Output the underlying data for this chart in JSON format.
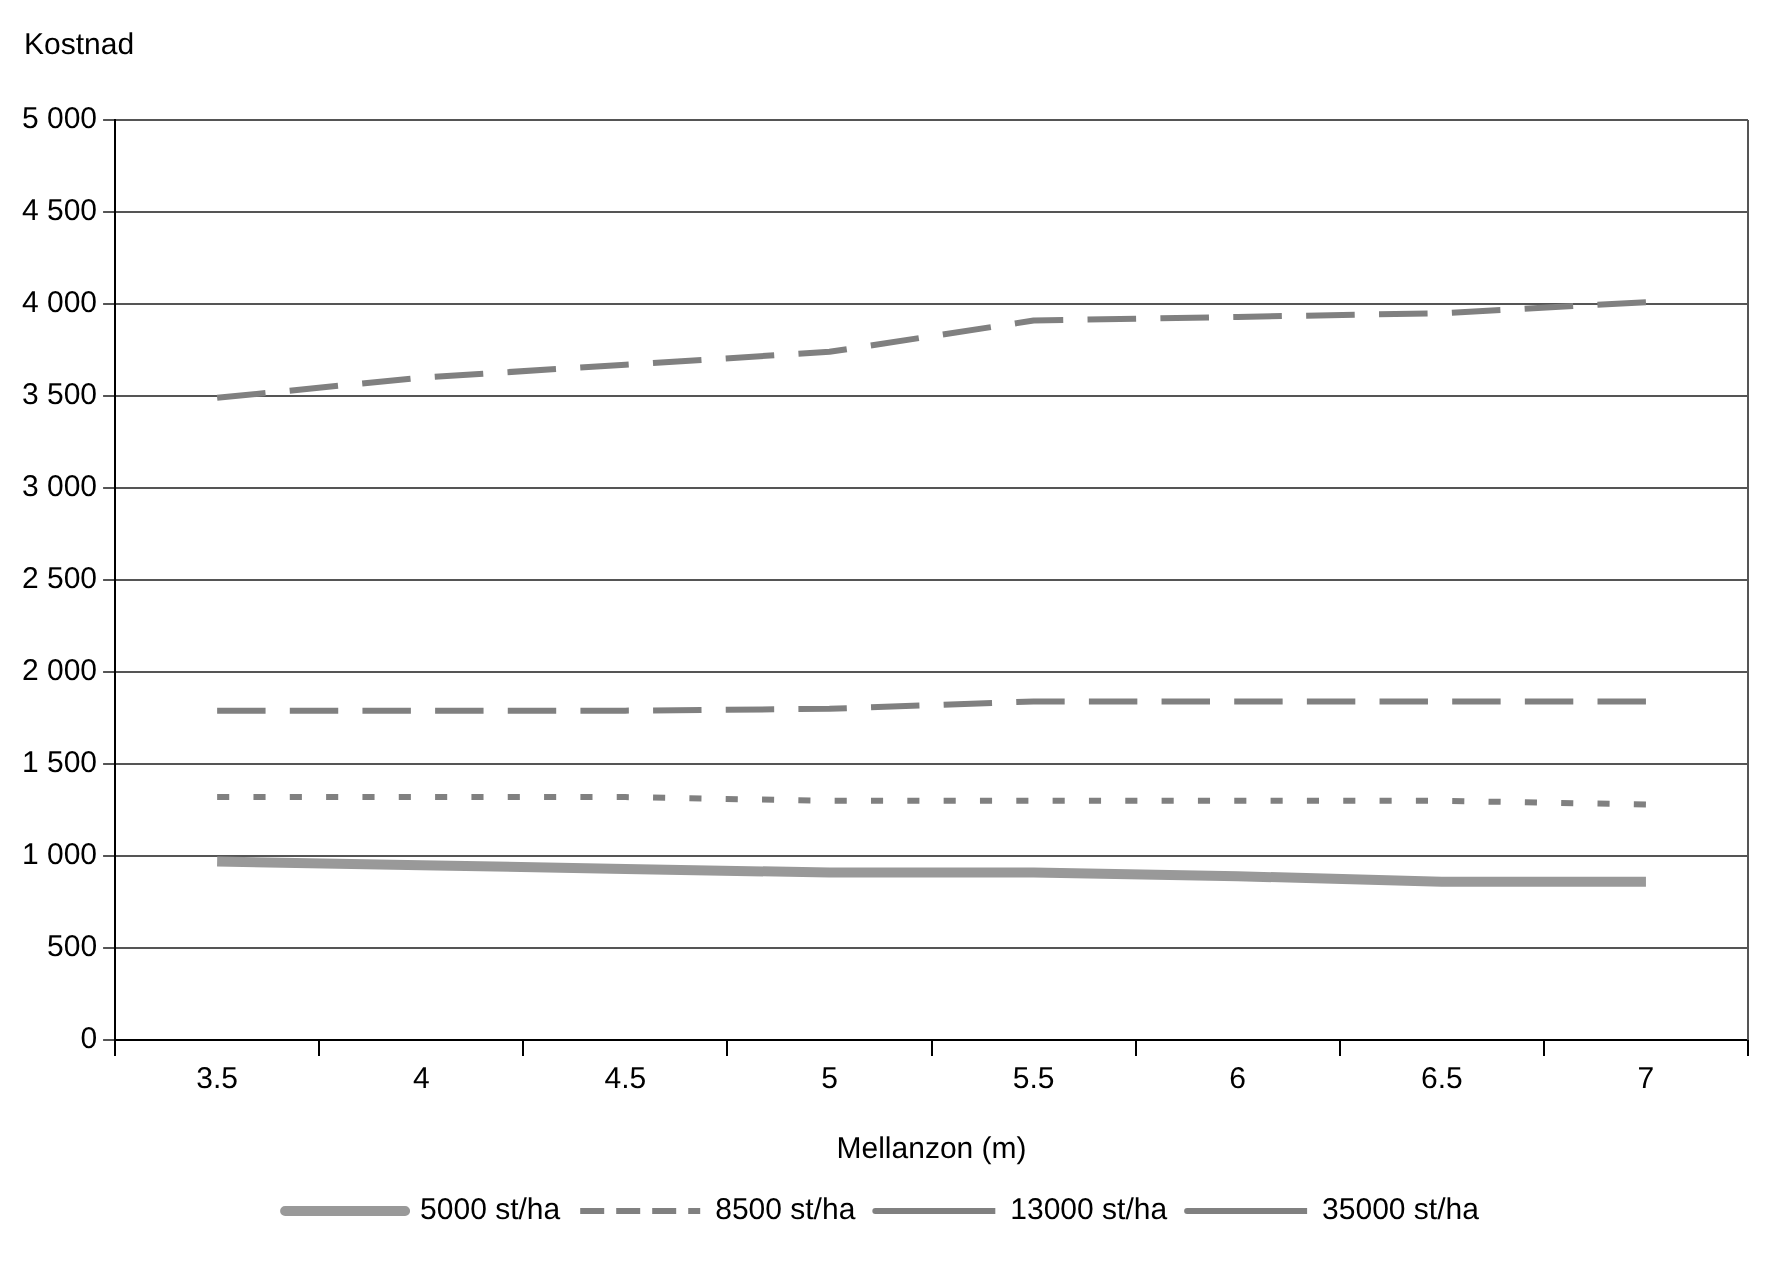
{
  "chart_data": {
    "type": "line",
    "ylabel": "Kostnad",
    "xlabel": "Mellanzon (m)",
    "categories": [
      "3.5",
      "4",
      "4.5",
      "5",
      "5.5",
      "6",
      "6.5",
      "7"
    ],
    "series": [
      {
        "name": "5000 st/ha",
        "color": "#999999",
        "line_style": "solid",
        "values": [
          970,
          950,
          930,
          910,
          910,
          890,
          860,
          860
        ]
      },
      {
        "name": "8500 st/ha",
        "color": "#808080",
        "line_style": "dotted",
        "values": [
          1320,
          1320,
          1320,
          1300,
          1300,
          1300,
          1300,
          1280
        ]
      },
      {
        "name": "13000 st/ha",
        "color": "#808080",
        "line_style": "dashed",
        "values": [
          1790,
          1790,
          1790,
          1800,
          1840,
          1840,
          1840,
          1840
        ]
      },
      {
        "name": "35000 st/ha",
        "color": "#808080",
        "line_style": "dashed",
        "values": [
          3490,
          3600,
          3670,
          3740,
          3910,
          3930,
          3950,
          4010
        ]
      }
    ],
    "ylim": [
      0,
      5000
    ],
    "yticks": [
      {
        "value": 0,
        "label": "0"
      },
      {
        "value": 500,
        "label": "500"
      },
      {
        "value": 1000,
        "label": "1 000"
      },
      {
        "value": 1500,
        "label": "1 500"
      },
      {
        "value": 2000,
        "label": "2 000"
      },
      {
        "value": 2500,
        "label": "2 500"
      },
      {
        "value": 3000,
        "label": "3 000"
      },
      {
        "value": 3500,
        "label": "3 500"
      },
      {
        "value": 4000,
        "label": "4 000"
      },
      {
        "value": 4500,
        "label": "4 500"
      },
      {
        "value": 5000,
        "label": "5 000"
      }
    ],
    "grid": "y",
    "legend": "bottom",
    "marker": "none"
  }
}
